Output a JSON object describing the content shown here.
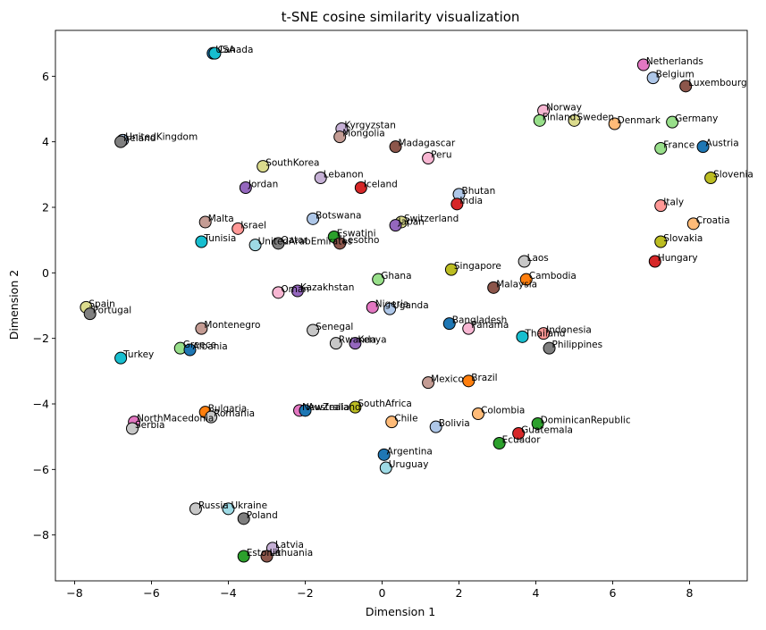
{
  "chart_data": {
    "type": "scatter",
    "title": "t-SNE cosine similarity visualization",
    "xlabel": "Dimension 1",
    "ylabel": "Dimension 2",
    "xlim": [
      -8.5,
      9.5
    ],
    "ylim": [
      -9.4,
      7.4
    ],
    "xticks": [
      -8,
      -6,
      -4,
      -2,
      0,
      2,
      4,
      6,
      8
    ],
    "yticks": [
      -8,
      -6,
      -4,
      -2,
      0,
      2,
      4,
      6
    ],
    "grid": false,
    "points": [
      {
        "label": "USA",
        "x": -4.4,
        "y": 6.7,
        "color": "#1f77b4"
      },
      {
        "label": "Canada",
        "x": -4.35,
        "y": 6.7,
        "color": "#17becf"
      },
      {
        "label": "Netherlands",
        "x": 6.8,
        "y": 6.35,
        "color": "#e377c2"
      },
      {
        "label": "Belgium",
        "x": 7.05,
        "y": 5.95,
        "color": "#aec7e8"
      },
      {
        "label": "Luxembourg",
        "x": 7.9,
        "y": 5.7,
        "color": "#8c564b"
      },
      {
        "label": "Norway",
        "x": 4.2,
        "y": 4.95,
        "color": "#f7b6d2"
      },
      {
        "label": "Finland",
        "x": 4.1,
        "y": 4.65,
        "color": "#98df8a"
      },
      {
        "label": "Sweden",
        "x": 5.0,
        "y": 4.65,
        "color": "#dbdb8d"
      },
      {
        "label": "Denmark",
        "x": 6.05,
        "y": 4.55,
        "color": "#ffbb78"
      },
      {
        "label": "Germany",
        "x": 7.55,
        "y": 4.6,
        "color": "#98df8a"
      },
      {
        "label": "Austria",
        "x": 8.35,
        "y": 3.85,
        "color": "#1f77b4"
      },
      {
        "label": "France",
        "x": 7.25,
        "y": 3.8,
        "color": "#98df8a"
      },
      {
        "label": "Slovenia",
        "x": 8.55,
        "y": 2.9,
        "color": "#bcbd22"
      },
      {
        "label": "Italy",
        "x": 7.25,
        "y": 2.05,
        "color": "#ff9896"
      },
      {
        "label": "Croatia",
        "x": 8.1,
        "y": 1.5,
        "color": "#ffbb78"
      },
      {
        "label": "Slovakia",
        "x": 7.25,
        "y": 0.95,
        "color": "#bcbd22"
      },
      {
        "label": "Hungary",
        "x": 7.1,
        "y": 0.35,
        "color": "#d62728"
      },
      {
        "label": "Kyrgyzstan",
        "x": -1.05,
        "y": 4.4,
        "color": "#c5b0d5"
      },
      {
        "label": "Mongolia",
        "x": -1.1,
        "y": 4.15,
        "color": "#c49c94"
      },
      {
        "label": "Madagascar",
        "x": 0.35,
        "y": 3.85,
        "color": "#8c564b"
      },
      {
        "label": "Peru",
        "x": 1.2,
        "y": 3.5,
        "color": "#f7b6d2"
      },
      {
        "label": "UnitedKingdom",
        "x": -6.75,
        "y": 4.05,
        "color": "#aec7e8"
      },
      {
        "label": "Ireland",
        "x": -6.8,
        "y": 4.0,
        "color": "#7f7f7f"
      },
      {
        "label": "SouthKorea",
        "x": -3.1,
        "y": 3.25,
        "color": "#dbdb8d"
      },
      {
        "label": "Lebanon",
        "x": -1.6,
        "y": 2.9,
        "color": "#c5b0d5"
      },
      {
        "label": "Jordan",
        "x": -3.55,
        "y": 2.6,
        "color": "#9467bd"
      },
      {
        "label": "Iceland",
        "x": -0.55,
        "y": 2.6,
        "color": "#d62728"
      },
      {
        "label": "Bhutan",
        "x": 2.0,
        "y": 2.4,
        "color": "#aec7e8"
      },
      {
        "label": "India",
        "x": 1.95,
        "y": 2.1,
        "color": "#d62728"
      },
      {
        "label": "Botswana",
        "x": -1.8,
        "y": 1.65,
        "color": "#aec7e8"
      },
      {
        "label": "Switzerland",
        "x": 0.5,
        "y": 1.55,
        "color": "#dbdb8d"
      },
      {
        "label": "Japan",
        "x": 0.35,
        "y": 1.45,
        "color": "#9467bd"
      },
      {
        "label": "Malta",
        "x": -4.6,
        "y": 1.55,
        "color": "#c49c94"
      },
      {
        "label": "Israel",
        "x": -3.75,
        "y": 1.35,
        "color": "#ff9896"
      },
      {
        "label": "Eswatini",
        "x": -1.25,
        "y": 1.1,
        "color": "#2ca02c"
      },
      {
        "label": "Tunisia",
        "x": -4.7,
        "y": 0.95,
        "color": "#17becf"
      },
      {
        "label": "UnitedArabEmirates",
        "x": -3.3,
        "y": 0.85,
        "color": "#9edae5"
      },
      {
        "label": "Qatar",
        "x": -2.7,
        "y": 0.9,
        "color": "#7f7f7f"
      },
      {
        "label": "Lesotho",
        "x": -1.1,
        "y": 0.9,
        "color": "#8c564b"
      },
      {
        "label": "Laos",
        "x": 3.7,
        "y": 0.35,
        "color": "#c7c7c7"
      },
      {
        "label": "Singapore",
        "x": 1.8,
        "y": 0.1,
        "color": "#bcbd22"
      },
      {
        "label": "Cambodia",
        "x": 3.75,
        "y": -0.2,
        "color": "#ff7f0e"
      },
      {
        "label": "Ghana",
        "x": -0.1,
        "y": -0.2,
        "color": "#98df8a"
      },
      {
        "label": "Malaysia",
        "x": 2.9,
        "y": -0.45,
        "color": "#8c564b"
      },
      {
        "label": "Spain",
        "x": -7.7,
        "y": -1.05,
        "color": "#dbdb8d"
      },
      {
        "label": "Portugal",
        "x": -7.6,
        "y": -1.25,
        "color": "#7f7f7f"
      },
      {
        "label": "Oman",
        "x": -2.7,
        "y": -0.6,
        "color": "#f7b6d2"
      },
      {
        "label": "Kazakhstan",
        "x": -2.2,
        "y": -0.55,
        "color": "#9467bd"
      },
      {
        "label": "Nigeria",
        "x": -0.25,
        "y": -1.05,
        "color": "#e377c2"
      },
      {
        "label": "Uganda",
        "x": 0.2,
        "y": -1.1,
        "color": "#aec7e8"
      },
      {
        "label": "Bangladesh",
        "x": 1.75,
        "y": -1.55,
        "color": "#1f77b4"
      },
      {
        "label": "Panama",
        "x": 2.25,
        "y": -1.7,
        "color": "#f7b6d2"
      },
      {
        "label": "Montenegro",
        "x": -4.7,
        "y": -1.7,
        "color": "#c49c94"
      },
      {
        "label": "Senegal",
        "x": -1.8,
        "y": -1.75,
        "color": "#c7c7c7"
      },
      {
        "label": "Indonesia",
        "x": 4.2,
        "y": -1.85,
        "color": "#ff9896"
      },
      {
        "label": "Thailand",
        "x": 3.65,
        "y": -1.95,
        "color": "#17becf"
      },
      {
        "label": "Rwanda",
        "x": -1.2,
        "y": -2.15,
        "color": "#c7c7c7"
      },
      {
        "label": "Kenya",
        "x": -0.7,
        "y": -2.15,
        "color": "#9467bd"
      },
      {
        "label": "Philippines",
        "x": 4.35,
        "y": -2.3,
        "color": "#7f7f7f"
      },
      {
        "label": "Greece",
        "x": -5.25,
        "y": -2.3,
        "color": "#98df8a"
      },
      {
        "label": "Albania",
        "x": -5.0,
        "y": -2.35,
        "color": "#1f77b4"
      },
      {
        "label": "Turkey",
        "x": -6.8,
        "y": -2.6,
        "color": "#17becf"
      },
      {
        "label": "Mexico",
        "x": 1.2,
        "y": -3.35,
        "color": "#c49c94"
      },
      {
        "label": "Brazil",
        "x": 2.25,
        "y": -3.3,
        "color": "#ff7f0e"
      },
      {
        "label": "SouthAfrica",
        "x": -0.7,
        "y": -4.1,
        "color": "#bcbd22"
      },
      {
        "label": "NewZealand",
        "x": -2.15,
        "y": -4.2,
        "color": "#e377c2"
      },
      {
        "label": "Australia",
        "x": -2.0,
        "y": -4.2,
        "color": "#1f77b4"
      },
      {
        "label": "Bulgaria",
        "x": -4.6,
        "y": -4.25,
        "color": "#ff7f0e"
      },
      {
        "label": "Romania",
        "x": -4.45,
        "y": -4.4,
        "color": "#c7c7c7"
      },
      {
        "label": "Colombia",
        "x": 2.5,
        "y": -4.3,
        "color": "#ffbb78"
      },
      {
        "label": "Chile",
        "x": 0.25,
        "y": -4.55,
        "color": "#ffbb78"
      },
      {
        "label": "DominicanRepublic",
        "x": 4.05,
        "y": -4.6,
        "color": "#2ca02c"
      },
      {
        "label": "NorthMacedonia",
        "x": -6.45,
        "y": -4.55,
        "color": "#e377c2"
      },
      {
        "label": "Serbia",
        "x": -6.5,
        "y": -4.75,
        "color": "#c7c7c7"
      },
      {
        "label": "Bolivia",
        "x": 1.4,
        "y": -4.7,
        "color": "#aec7e8"
      },
      {
        "label": "Guatemala",
        "x": 3.55,
        "y": -4.9,
        "color": "#d62728"
      },
      {
        "label": "Ecuador",
        "x": 3.05,
        "y": -5.2,
        "color": "#2ca02c"
      },
      {
        "label": "Argentina",
        "x": 0.05,
        "y": -5.55,
        "color": "#1f77b4"
      },
      {
        "label": "Uruguay",
        "x": 0.1,
        "y": -5.95,
        "color": "#9edae5"
      },
      {
        "label": "Russia",
        "x": -4.85,
        "y": -7.2,
        "color": "#c7c7c7"
      },
      {
        "label": "Ukraine",
        "x": -4.0,
        "y": -7.2,
        "color": "#9edae5"
      },
      {
        "label": "Poland",
        "x": -3.6,
        "y": -7.5,
        "color": "#7f7f7f"
      },
      {
        "label": "Latvia",
        "x": -2.85,
        "y": -8.4,
        "color": "#c5b0d5"
      },
      {
        "label": "Estonia",
        "x": -3.6,
        "y": -8.65,
        "color": "#2ca02c"
      },
      {
        "label": "Lithuania",
        "x": -3.0,
        "y": -8.65,
        "color": "#8c564b"
      }
    ]
  }
}
